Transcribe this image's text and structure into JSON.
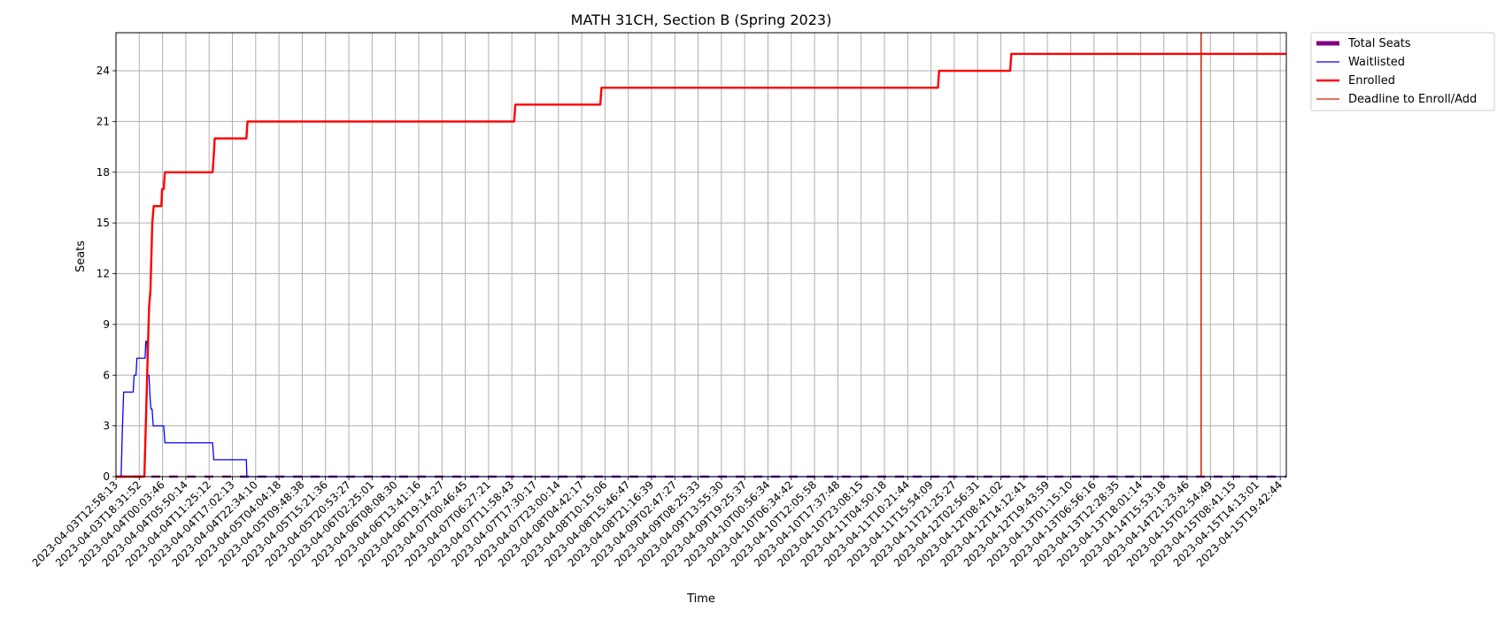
{
  "chart_data": {
    "type": "line",
    "title": "MATH 31CH, Section B (Spring 2023)",
    "xlabel": "Time",
    "ylabel": "Seats",
    "ylim": [
      0,
      26.25
    ],
    "yticks": [
      0,
      3,
      6,
      9,
      12,
      15,
      18,
      21,
      24
    ],
    "grid": true,
    "legend": "outside-top-right",
    "x_categories": [
      "2023-04-03T12:58:13",
      "2023-04-03T18:31:52",
      "2023-04-04T00:03:46",
      "2023-04-04T05:50:14",
      "2023-04-04T11:25:12",
      "2023-04-04T17:02:13",
      "2023-04-04T22:34:10",
      "2023-04-05T04:04:18",
      "2023-04-05T09:48:38",
      "2023-04-05T15:21:36",
      "2023-04-05T20:53:27",
      "2023-04-06T02:25:01",
      "2023-04-06T08:08:30",
      "2023-04-06T13:41:16",
      "2023-04-06T19:14:27",
      "2023-04-07T00:46:45",
      "2023-04-07T06:27:21",
      "2023-04-07T11:58:43",
      "2023-04-07T17:30:17",
      "2023-04-07T23:00:14",
      "2023-04-08T04:42:17",
      "2023-04-08T10:15:06",
      "2023-04-08T15:46:47",
      "2023-04-08T21:16:39",
      "2023-04-09T02:47:27",
      "2023-04-09T08:25:33",
      "2023-04-09T13:55:30",
      "2023-04-09T19:25:37",
      "2023-04-10T00:56:34",
      "2023-04-10T06:34:42",
      "2023-04-10T12:05:58",
      "2023-04-10T17:37:48",
      "2023-04-10T23:08:15",
      "2023-04-11T04:50:18",
      "2023-04-11T10:21:44",
      "2023-04-11T15:54:09",
      "2023-04-11T21:25:27",
      "2023-04-12T02:56:31",
      "2023-04-12T08:41:02",
      "2023-04-12T14:12:41",
      "2023-04-12T19:43:59",
      "2023-04-13T01:15:10",
      "2023-04-13T06:56:16",
      "2023-04-13T12:28:35",
      "2023-04-13T18:01:14",
      "2023-04-14T15:53:18",
      "2023-04-14T21:23:46",
      "2023-04-15T02:54:49",
      "2023-04-15T08:41:15",
      "2023-04-15T14:13:01",
      "2023-04-15T19:42:44"
    ],
    "x_range": [
      0,
      50.26
    ],
    "series": [
      {
        "name": "Total Seats",
        "style": "dashed",
        "color": "#800080",
        "values": [
          [
            0,
            0
          ],
          [
            50.26,
            0
          ]
        ]
      },
      {
        "name": "Waitlisted",
        "style": "step",
        "color": "#0000ff",
        "values": [
          [
            0,
            0
          ],
          [
            0.22,
            0
          ],
          [
            0.28,
            3
          ],
          [
            0.33,
            5
          ],
          [
            0.74,
            5
          ],
          [
            0.78,
            6
          ],
          [
            0.86,
            6
          ],
          [
            0.9,
            7
          ],
          [
            1.25,
            7
          ],
          [
            1.28,
            8
          ],
          [
            1.33,
            8
          ],
          [
            1.35,
            6
          ],
          [
            1.42,
            6
          ],
          [
            1.45,
            5
          ],
          [
            1.5,
            4
          ],
          [
            1.55,
            4
          ],
          [
            1.6,
            3
          ],
          [
            2.05,
            3
          ],
          [
            2.1,
            2
          ],
          [
            4.15,
            2
          ],
          [
            4.2,
            1
          ],
          [
            5.6,
            1
          ],
          [
            5.62,
            0
          ],
          [
            50.26,
            0
          ]
        ]
      },
      {
        "name": "Enrolled",
        "style": "step",
        "color": "#ff0000",
        "values": [
          [
            0,
            0
          ],
          [
            1.22,
            0
          ],
          [
            1.3,
            4
          ],
          [
            1.36,
            7
          ],
          [
            1.42,
            10
          ],
          [
            1.48,
            11
          ],
          [
            1.52,
            13
          ],
          [
            1.56,
            15
          ],
          [
            1.62,
            16
          ],
          [
            1.95,
            16
          ],
          [
            1.98,
            17
          ],
          [
            2.05,
            17
          ],
          [
            2.1,
            18
          ],
          [
            4.15,
            18
          ],
          [
            4.2,
            19
          ],
          [
            4.24,
            20
          ],
          [
            5.6,
            20
          ],
          [
            5.65,
            21
          ],
          [
            17.1,
            21
          ],
          [
            17.15,
            22
          ],
          [
            20.8,
            22
          ],
          [
            20.85,
            23
          ],
          [
            35.3,
            23
          ],
          [
            35.35,
            24
          ],
          [
            38.4,
            24
          ],
          [
            38.45,
            25
          ],
          [
            50.26,
            25
          ]
        ]
      }
    ],
    "deadline": {
      "name": "Deadline to Enroll/Add",
      "color": "#cc2200",
      "x": 46.6
    },
    "legend_entries": [
      {
        "label": "Total Seats",
        "color": "#800080",
        "style": "thick"
      },
      {
        "label": "Waitlisted",
        "color": "#0000ff",
        "style": "thin"
      },
      {
        "label": "Enrolled",
        "color": "#ff0000",
        "style": "medium"
      },
      {
        "label": "Deadline to Enroll/Add",
        "color": "#cc2200",
        "style": "thin"
      }
    ]
  }
}
